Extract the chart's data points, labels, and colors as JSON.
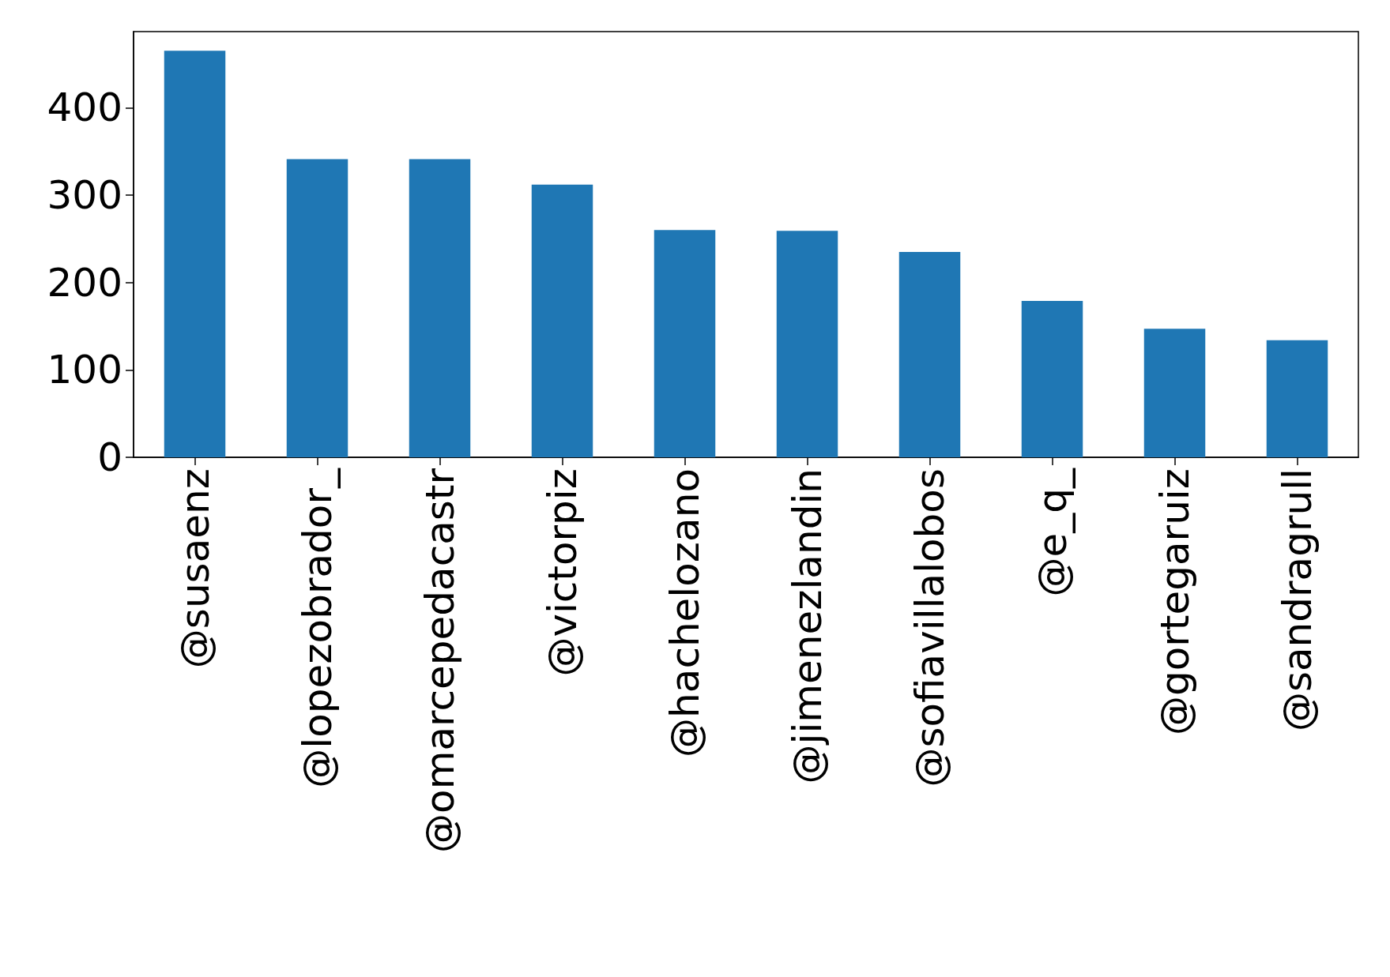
{
  "chart_data": {
    "type": "bar",
    "categories": [
      "@susaenz",
      "@lopezobrador_",
      "@omarcepedacastr",
      "@victorpiz",
      "@hachelozano",
      "@jimenezlandin",
      "@sofiavillalobos",
      "@e_q_",
      "@gortegaruiz",
      "@sandragrull"
    ],
    "values": [
      465,
      341,
      341,
      312,
      260,
      259,
      235,
      179,
      147,
      134
    ],
    "color": "#1f77b4",
    "ylim": [
      0,
      487
    ],
    "yticks": [
      0,
      100,
      200,
      300,
      400
    ],
    "grid": false
  }
}
